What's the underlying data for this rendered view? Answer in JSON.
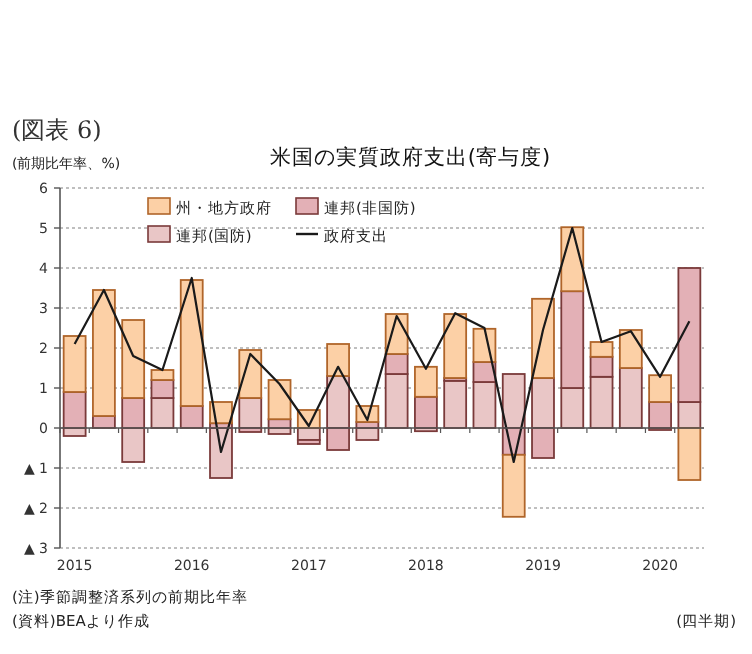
{
  "chart_data": {
    "type": "bar",
    "stacked": true,
    "title": "米国の実質政府支出(寄与度)",
    "ylabel": "(前期比年率、%)",
    "xlabel": "(四半期)",
    "annotations": [
      "(図表 6)",
      "(注)季節調整済系列の前期比年率",
      "(資料)BEAより作成"
    ],
    "categories": [
      "2015",
      null,
      null,
      null,
      "2016",
      null,
      null,
      null,
      "2017",
      null,
      null,
      null,
      "2018",
      null,
      null,
      null,
      "2019",
      null,
      null,
      null,
      "2020",
      null
    ],
    "ylim": [
      -3,
      6
    ],
    "yticks": [
      {
        "value": -3,
        "label": "▲ 3"
      },
      {
        "value": -2,
        "label": "▲ 2"
      },
      {
        "value": -1,
        "label": "▲ 1"
      },
      0,
      1,
      2,
      3,
      4,
      5,
      6
    ],
    "grid": "y",
    "legend": "top left",
    "series": [
      {
        "name": "連邦(国防)",
        "color": "#e9c6c6",
        "values": [
          -0.2,
          0,
          -0.85,
          0.75,
          0,
          -1.25,
          0.75,
          -0.15,
          -0.3,
          1.3,
          -0.3,
          1.35,
          -0.08,
          1.18,
          1.15,
          1.35,
          1.25,
          1.0,
          1.28,
          1.5,
          -0.05,
          0.65
        ]
      },
      {
        "name": "連邦(非国防)",
        "color": "#e3b0b6",
        "values": [
          0.9,
          0.3,
          0.75,
          0.45,
          0.55,
          0.12,
          -0.1,
          0.22,
          -0.1,
          -0.55,
          0.15,
          0.5,
          0.78,
          0.07,
          0.5,
          -0.67,
          -0.75,
          2.42,
          0.5,
          0,
          0.65,
          3.35
        ]
      },
      {
        "name": "州・地方政府",
        "color": "#fcd0a6",
        "values": [
          1.4,
          3.15,
          1.95,
          0.25,
          3.15,
          0.53,
          1.2,
          0.98,
          0.45,
          0.8,
          0.4,
          1.0,
          0.75,
          1.6,
          0.83,
          -1.55,
          1.98,
          1.6,
          0.37,
          0.95,
          0.67,
          -1.3
        ]
      },
      {
        "name": "政府支出",
        "type": "line",
        "color": "#1a1a1a",
        "values": [
          2.1,
          3.45,
          1.8,
          1.45,
          3.75,
          -0.6,
          1.85,
          1.1,
          0.05,
          1.53,
          0.2,
          2.8,
          1.48,
          2.87,
          2.5,
          -0.85,
          2.45,
          5.0,
          2.15,
          2.42,
          1.28,
          2.67
        ]
      }
    ]
  }
}
